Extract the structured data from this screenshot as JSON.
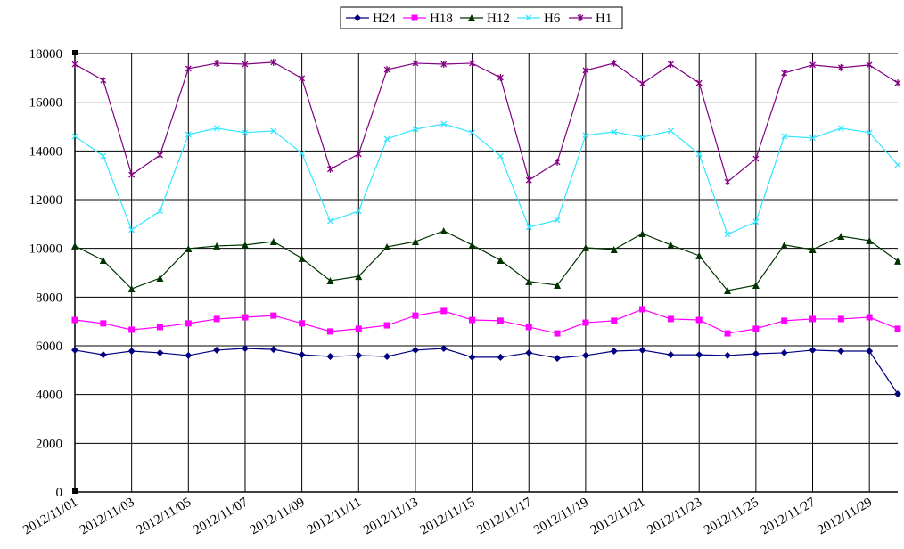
{
  "chart_data": {
    "type": "line",
    "categories": [
      "2012/11/01",
      null,
      "2012/11/03",
      null,
      "2012/11/05",
      null,
      "2012/11/07",
      null,
      "2012/11/09",
      null,
      "2012/11/11",
      null,
      "2012/11/13",
      null,
      "2012/11/15",
      null,
      "2012/11/17",
      null,
      "2012/11/19",
      null,
      "2012/11/21",
      null,
      "2012/11/23",
      null,
      "2012/11/25",
      null,
      "2012/11/27",
      null,
      "2012/11/29",
      null
    ],
    "series": [
      {
        "name": "H24",
        "color": "#000080",
        "marker": "diamond",
        "values": [
          5820,
          5630,
          5780,
          5710,
          5600,
          5820,
          5890,
          5850,
          5630,
          5560,
          5600,
          5560,
          5820,
          5890,
          5530,
          5530,
          5710,
          5490,
          5600,
          5780,
          5820,
          5630,
          5630,
          5600,
          5670,
          5710,
          5820,
          5780,
          5780,
          4020
        ]
      },
      {
        "name": "H18",
        "color": "#ff00ff",
        "marker": "square",
        "values": [
          7060,
          6920,
          6660,
          6770,
          6920,
          7100,
          7170,
          7240,
          6920,
          6590,
          6700,
          6840,
          7240,
          7430,
          7060,
          7030,
          6770,
          6510,
          6950,
          7030,
          7500,
          7100,
          7060,
          6510,
          6700,
          7030,
          7100,
          7100,
          7170,
          6700
        ]
      },
      {
        "name": "H12",
        "color": "#003300",
        "marker": "triangle",
        "values": [
          10100,
          9510,
          8340,
          8780,
          9990,
          10100,
          10140,
          10280,
          9590,
          8670,
          8850,
          10060,
          10280,
          10720,
          10140,
          9510,
          8640,
          8490,
          10030,
          9950,
          10610,
          10140,
          9700,
          8270,
          8490,
          10140,
          9950,
          10500,
          10320,
          9480
        ]
      },
      {
        "name": "H6",
        "color": "#33e6ff",
        "marker": "x",
        "values": [
          14600,
          13790,
          10760,
          11530,
          14670,
          14930,
          14750,
          14820,
          13900,
          11120,
          11530,
          14490,
          14890,
          15110,
          14750,
          13790,
          10870,
          11160,
          14640,
          14780,
          14560,
          14820,
          13870,
          10580,
          11090,
          14600,
          14530,
          14930,
          14750,
          13430
        ]
      },
      {
        "name": "H1",
        "color": "#800080",
        "marker": "star",
        "values": [
          17560,
          16900,
          13020,
          13830,
          17380,
          17600,
          17560,
          17640,
          16980,
          13250,
          13870,
          17340,
          17600,
          17560,
          17600,
          17010,
          12800,
          13540,
          17310,
          17600,
          16760,
          17560,
          16790,
          12730,
          13680,
          17200,
          17530,
          17420,
          17530,
          16790
        ]
      }
    ],
    "ylim": [
      0,
      18000
    ],
    "yticks": [
      0,
      2000,
      4000,
      6000,
      8000,
      10000,
      12000,
      14000,
      16000,
      18000
    ],
    "grid": true,
    "legend": "top"
  }
}
